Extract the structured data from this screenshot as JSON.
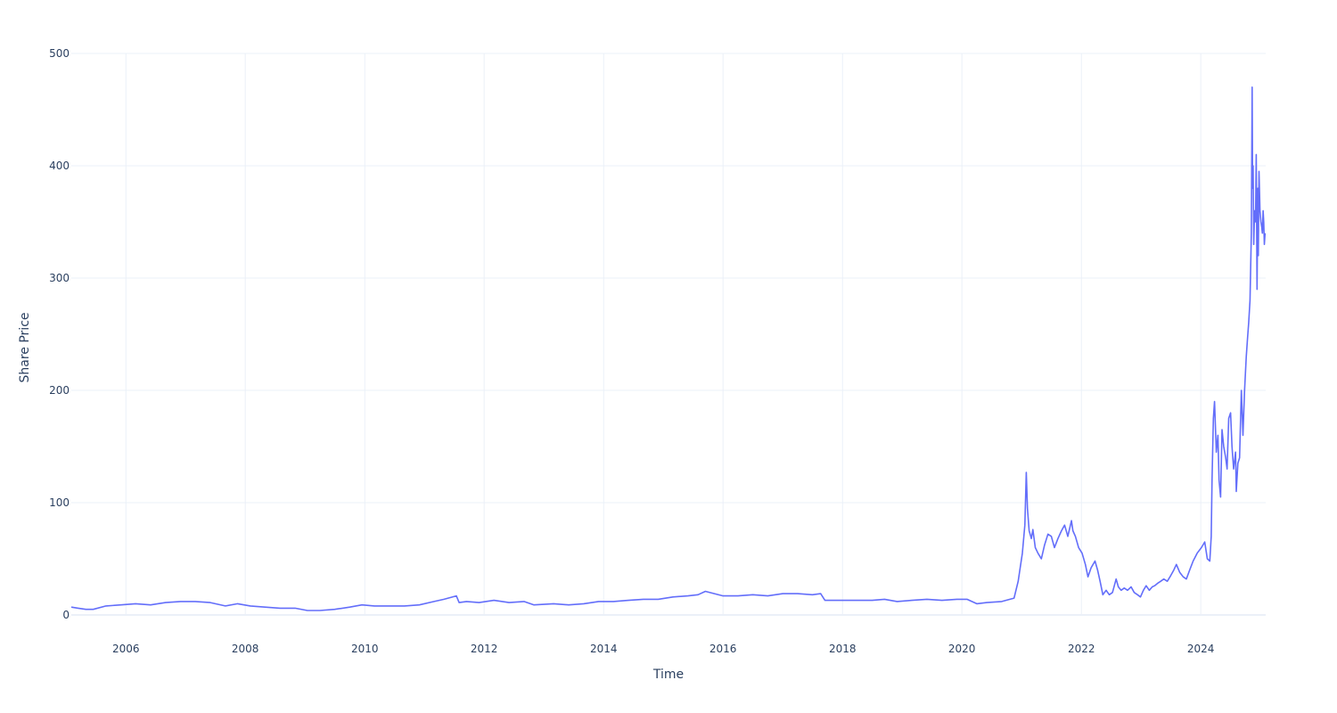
{
  "chart_data": {
    "type": "line",
    "xlabel": "Time",
    "ylabel": "Share Price",
    "xlim": [
      "2005-02-01",
      "2025-02-01"
    ],
    "ylim": [
      0,
      500
    ],
    "x_ticks": [
      "2006",
      "2008",
      "2010",
      "2012",
      "2014",
      "2016",
      "2018",
      "2020",
      "2022",
      "2024"
    ],
    "y_ticks": [
      0,
      100,
      200,
      300,
      400,
      500
    ],
    "grid": true,
    "legend": "none",
    "line_color": "#636efa",
    "series": [
      {
        "x": [
          "2005-02-01",
          "2005-03-15",
          "2005-05-01",
          "2005-06-15",
          "2005-09-01",
          "2005-12-01",
          "2006-03-01",
          "2006-06-01",
          "2006-09-01",
          "2006-12-01",
          "2007-03-01",
          "2007-06-01",
          "2007-09-01",
          "2007-11-15",
          "2008-02-01",
          "2008-05-01",
          "2008-08-01",
          "2008-11-01",
          "2009-01-15",
          "2009-04-01",
          "2009-07-01",
          "2009-10-01",
          "2009-12-15",
          "2010-03-01",
          "2010-06-01",
          "2010-09-01",
          "2010-12-01",
          "2011-03-01",
          "2011-05-01",
          "2011-07-15",
          "2011-08-01",
          "2011-09-15",
          "2011-12-01",
          "2012-03-01",
          "2012-06-01",
          "2012-09-01",
          "2012-11-01",
          "2013-03-01",
          "2013-06-01",
          "2013-09-01",
          "2013-12-01",
          "2014-03-01",
          "2014-06-01",
          "2014-09-01",
          "2014-12-01",
          "2015-03-01",
          "2015-06-01",
          "2015-08-01",
          "2015-09-15",
          "2016-01-01",
          "2016-04-01",
          "2016-07-01",
          "2016-10-01",
          "2017-01-01",
          "2017-04-01",
          "2017-07-01",
          "2017-08-20",
          "2017-09-15",
          "2018-01-01",
          "2018-04-01",
          "2018-07-01",
          "2018-09-15",
          "2018-12-01",
          "2019-03-01",
          "2019-06-01",
          "2019-09-01",
          "2019-12-01",
          "2020-02-01",
          "2020-04-01",
          "2020-06-01",
          "2020-09-01",
          "2020-11-15",
          "2020-12-10",
          "2021-01-05",
          "2021-01-20",
          "2021-01-29",
          "2021-02-05",
          "2021-02-15",
          "2021-03-01",
          "2021-03-10",
          "2021-03-25",
          "2021-04-10",
          "2021-05-01",
          "2021-05-20",
          "2021-06-10",
          "2021-07-01",
          "2021-07-20",
          "2021-08-10",
          "2021-09-01",
          "2021-09-20",
          "2021-10-10",
          "2021-11-01",
          "2021-11-10",
          "2021-11-25",
          "2021-12-15",
          "2022-01-05",
          "2022-01-25",
          "2022-02-10",
          "2022-03-01",
          "2022-03-25",
          "2022-04-10",
          "2022-04-25",
          "2022-05-12",
          "2022-06-01",
          "2022-06-20",
          "2022-07-10",
          "2022-08-01",
          "2022-08-15",
          "2022-09-01",
          "2022-09-20",
          "2022-10-10",
          "2022-11-01",
          "2022-11-20",
          "2022-12-10",
          "2022-12-28",
          "2023-01-15",
          "2023-02-01",
          "2023-02-20",
          "2023-03-10",
          "2023-03-25",
          "2023-04-10",
          "2023-05-01",
          "2023-05-20",
          "2023-06-10",
          "2023-07-01",
          "2023-07-20",
          "2023-08-05",
          "2023-08-25",
          "2023-09-15",
          "2023-10-05",
          "2023-10-25",
          "2023-11-15",
          "2023-12-10",
          "2024-01-05",
          "2024-01-25",
          "2024-02-10",
          "2024-02-25",
          "2024-03-05",
          "2024-03-10",
          "2024-03-18",
          "2024-03-25",
          "2024-04-05",
          "2024-04-15",
          "2024-04-22",
          "2024-05-01",
          "2024-05-10",
          "2024-05-20",
          "2024-06-01",
          "2024-06-10",
          "2024-06-20",
          "2024-07-01",
          "2024-07-10",
          "2024-07-20",
          "2024-08-01",
          "2024-08-05",
          "2024-08-15",
          "2024-08-25",
          "2024-09-05",
          "2024-09-15",
          "2024-09-25",
          "2024-10-05",
          "2024-10-12",
          "2024-10-20",
          "2024-10-28",
          "2024-11-05",
          "2024-11-10",
          "2024-11-13",
          "2024-11-16",
          "2024-11-20",
          "2024-11-25",
          "2024-12-01",
          "2024-12-05",
          "2024-12-10",
          "2024-12-15",
          "2024-12-18",
          "2024-12-22",
          "2024-12-28",
          "2025-01-03",
          "2025-01-08",
          "2025-01-12",
          "2025-01-16",
          "2025-01-20",
          "2025-01-24",
          "2025-01-28"
        ],
        "y": [
          7,
          6,
          5,
          5,
          8,
          9,
          10,
          9,
          11,
          12,
          12,
          11,
          8,
          10,
          8,
          7,
          6,
          6,
          4,
          4,
          5,
          7,
          9,
          8,
          8,
          8,
          9,
          12,
          14,
          17,
          11,
          12,
          11,
          13,
          11,
          12,
          9,
          10,
          9,
          10,
          12,
          12,
          13,
          14,
          14,
          16,
          17,
          18,
          21,
          17,
          17,
          18,
          17,
          19,
          19,
          18,
          19,
          13,
          13,
          13,
          13,
          14,
          12,
          13,
          14,
          13,
          14,
          14,
          10,
          11,
          12,
          15,
          30,
          55,
          80,
          127,
          95,
          75,
          68,
          76,
          60,
          55,
          50,
          62,
          72,
          70,
          60,
          68,
          75,
          80,
          70,
          84,
          75,
          70,
          60,
          55,
          45,
          34,
          42,
          48,
          40,
          30,
          18,
          22,
          18,
          20,
          32,
          25,
          22,
          24,
          22,
          25,
          20,
          18,
          16,
          22,
          26,
          22,
          25,
          26,
          28,
          30,
          32,
          30,
          35,
          40,
          45,
          38,
          34,
          32,
          40,
          48,
          55,
          60,
          65,
          50,
          48,
          70,
          120,
          175,
          190,
          145,
          160,
          120,
          105,
          165,
          150,
          140,
          130,
          175,
          180,
          150,
          130,
          145,
          110,
          135,
          140,
          200,
          160,
          200,
          230,
          245,
          260,
          280,
          340,
          470,
          380,
          400,
          330,
          360,
          350,
          410,
          290,
          380,
          320,
          395,
          360,
          350,
          345,
          340,
          360,
          350,
          330,
          340
        ]
      }
    ]
  }
}
